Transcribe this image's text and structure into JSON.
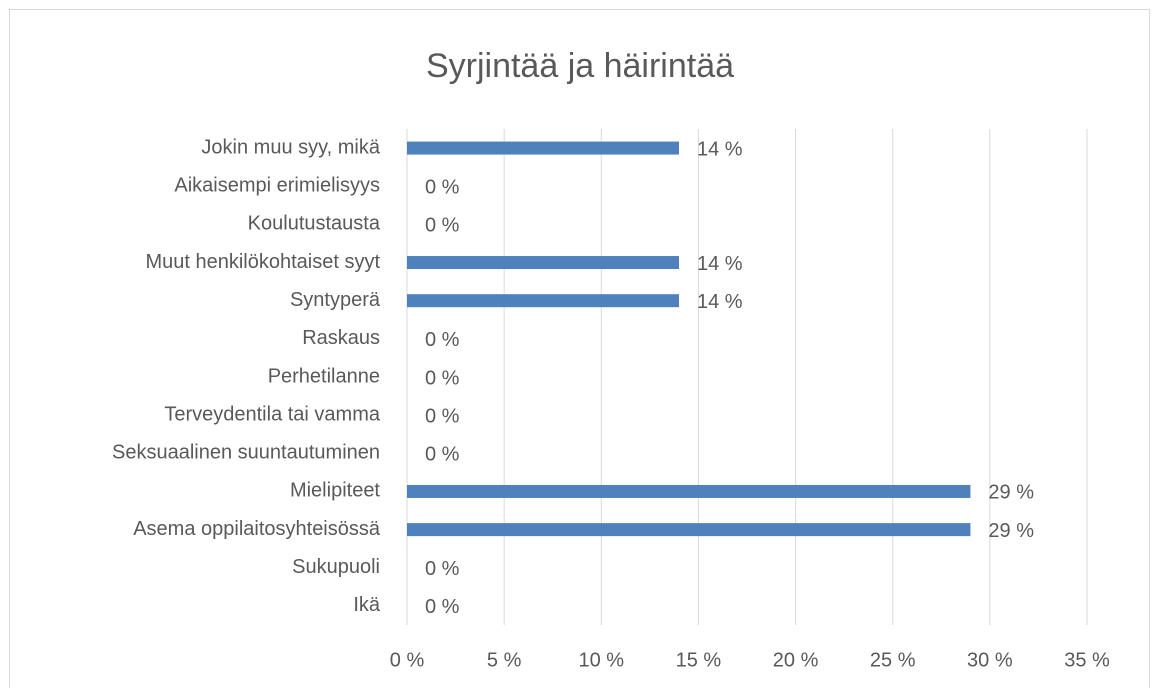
{
  "chart_data": {
    "type": "bar",
    "orientation": "horizontal",
    "title": "Syrjintää ja häirintää",
    "categories": [
      "Jokin muu syy, mikä",
      "Aikaisempi erimielisyys",
      "Koulutustausta",
      "Muut henkilökohtaiset syyt",
      "Syntyperä",
      "Raskaus",
      "Perhetilanne",
      "Terveydentila tai vamma",
      "Seksuaalinen suuntautuminen",
      "Mielipiteet",
      "Asema oppilaitosyhteisössä",
      "Sukupuoli",
      "Ikä"
    ],
    "values": [
      14,
      0,
      0,
      14,
      14,
      0,
      0,
      0,
      0,
      29,
      29,
      0,
      0
    ],
    "value_labels": [
      "14 %",
      "0 %",
      "0 %",
      "14 %",
      "14 %",
      "0 %",
      "0 %",
      "0 %",
      "0 %",
      "29 %",
      "29 %",
      "0 %",
      "0 %"
    ],
    "color": "#4f81bd",
    "xlim": [
      0,
      35
    ],
    "xticks": [
      {
        "value": 0,
        "label": "0 %"
      },
      {
        "value": 5,
        "label": "5 %"
      },
      {
        "value": 10,
        "label": "10 %"
      },
      {
        "value": 15,
        "label": "15 %"
      },
      {
        "value": 20,
        "label": "20 %"
      },
      {
        "value": 25,
        "label": "25 %"
      },
      {
        "value": 30,
        "label": "30 %"
      },
      {
        "value": 35,
        "label": "35 %"
      }
    ],
    "grid": true
  }
}
